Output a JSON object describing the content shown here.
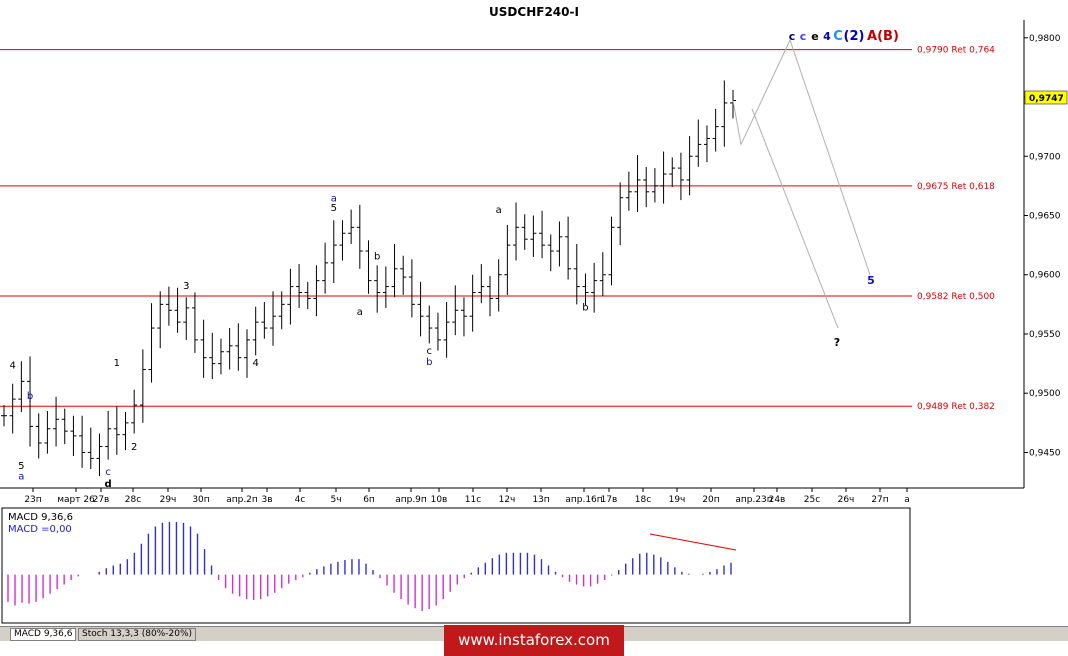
{
  "chart_data": {
    "type": "candlestick",
    "title": "USDCHF240-I",
    "ylim": [
      0.942,
      0.9815
    ],
    "y_ticks": [
      "0,9800",
      "0,9750",
      "0,9700",
      "0,9650",
      "0,9600",
      "0,9550",
      "0,9500",
      "0,9450"
    ],
    "current_price_label": "0,9747",
    "x_tick_labels": [
      "23п",
      "март 26",
      "27в",
      "28с",
      "29ч",
      "30п",
      "апр.2п",
      "3в",
      "4с",
      "5ч",
      "6п",
      "апр.9п",
      "10в",
      "11с",
      "12ч",
      "13п",
      "апр.16п",
      "17в",
      "18с",
      "19ч",
      "20п",
      "апр.23п",
      "24в",
      "25с",
      "26ч",
      "27п",
      "а"
    ],
    "retracement_levels": [
      {
        "price": 0.979,
        "label": "0,9790 Ret 0,764"
      },
      {
        "price": 0.9675,
        "label": "0,9675 Ret 0,618"
      },
      {
        "price": 0.9582,
        "label": "0,9582 Ret 0,500"
      },
      {
        "price": 0.9489,
        "label": "0,9489 Ret 0,382"
      }
    ],
    "close_path": [
      0.9481,
      0.9495,
      0.951,
      0.9472,
      0.9458,
      0.947,
      0.9478,
      0.9468,
      0.9464,
      0.945,
      0.9445,
      0.9455,
      0.947,
      0.9465,
      0.9475,
      0.949,
      0.952,
      0.9555,
      0.9575,
      0.957,
      0.956,
      0.9572,
      0.9545,
      0.953,
      0.9525,
      0.9535,
      0.954,
      0.953,
      0.9545,
      0.956,
      0.9555,
      0.9565,
      0.9575,
      0.959,
      0.9585,
      0.958,
      0.9595,
      0.961,
      0.9625,
      0.9635,
      0.964,
      0.962,
      0.9595,
      0.9585,
      0.959,
      0.9605,
      0.9598,
      0.9575,
      0.9565,
      0.9555,
      0.9545,
      0.956,
      0.957,
      0.9565,
      0.9585,
      0.959,
      0.958,
      0.96,
      0.9625,
      0.964,
      0.963,
      0.9635,
      0.9625,
      0.962,
      0.9632,
      0.9605,
      0.959,
      0.9585,
      0.9595,
      0.96,
      0.964,
      0.9665,
      0.967,
      0.968,
      0.967,
      0.9675,
      0.9685,
      0.969,
      0.968,
      0.97,
      0.971,
      0.9715,
      0.9725,
      0.9745,
      0.9747
    ],
    "wave_labels": [
      {
        "text": "4",
        "i": 1,
        "price": 0.9521,
        "color": "black"
      },
      {
        "text": "b",
        "i": 3,
        "price": 0.9495,
        "color": "blue"
      },
      {
        "text": "5",
        "i": 2,
        "price": 0.9436,
        "color": "black"
      },
      {
        "text": "a",
        "i": 2,
        "price": 0.9427,
        "color": "blue"
      },
      {
        "text": "1",
        "i": 13,
        "price": 0.9523,
        "color": "black"
      },
      {
        "text": "2",
        "i": 15,
        "price": 0.9452,
        "color": "black"
      },
      {
        "text": "c",
        "i": 12,
        "price": 0.9431,
        "color": "blue"
      },
      {
        "text": "d",
        "i": 12,
        "price": 0.9421,
        "color": "black"
      },
      {
        "text": "3",
        "i": 21,
        "price": 0.9588,
        "color": "black"
      },
      {
        "text": "4",
        "i": 29,
        "price": 0.9523,
        "color": "black"
      },
      {
        "text": "a",
        "i": 38,
        "price": 0.9662,
        "color": "blue"
      },
      {
        "text": "5",
        "i": 38,
        "price": 0.9654,
        "color": "black"
      },
      {
        "text": "b",
        "i": 43,
        "price": 0.9613,
        "color": "black"
      },
      {
        "text": "a",
        "i": 41,
        "price": 0.9566,
        "color": "black"
      },
      {
        "text": "c",
        "i": 49,
        "price": 0.9533,
        "color": "black"
      },
      {
        "text": "b",
        "i": 49,
        "price": 0.9524,
        "color": "blue"
      },
      {
        "text": "a",
        "i": 57,
        "price": 0.9652,
        "color": "black"
      },
      {
        "text": "b",
        "i": 67,
        "price": 0.957,
        "color": "black"
      }
    ],
    "projection_labels": [
      {
        "text": "5",
        "color": "#1010c0"
      },
      {
        "text": "?",
        "color": "#000000"
      }
    ],
    "top_degree_labels": [
      {
        "text": "c",
        "color": "#000080"
      },
      {
        "text": "c",
        "color": "#4040ff"
      },
      {
        "text": "e",
        "color": "#000000"
      },
      {
        "text": "4",
        "color": "#0000c0"
      },
      {
        "text": "C",
        "color": "#1e90ff"
      },
      {
        "text": "(2)",
        "color": "#0000c0"
      },
      {
        "text": "A",
        "color": "#c00000"
      },
      {
        "text": "(B)",
        "color": "#c00000"
      }
    ],
    "macd": {
      "label": "MACD 9,36,6",
      "value_label": "MACD =0,00",
      "ylim": [
        -0.005,
        0.007
      ],
      "histogram": [
        -0.003,
        -0.0034,
        -0.0031,
        -0.0032,
        -0.003,
        -0.0026,
        -0.0021,
        -0.0016,
        -0.0011,
        -0.0006,
        -0.0002,
        0.0,
        0.0,
        0.0003,
        0.0007,
        0.001,
        0.0012,
        0.0017,
        0.0024,
        0.0034,
        0.0045,
        0.0053,
        0.0057,
        0.0058,
        0.0058,
        0.0057,
        0.0053,
        0.0045,
        0.0028,
        0.001,
        -0.0006,
        -0.0015,
        -0.0021,
        -0.0024,
        -0.0027,
        -0.0028,
        -0.0027,
        -0.0024,
        -0.002,
        -0.0015,
        -0.001,
        -0.0006,
        -0.0003,
        0.0002,
        0.0006,
        0.0009,
        0.0012,
        0.0014,
        0.0016,
        0.0017,
        0.0017,
        0.0012,
        0.0005,
        -0.0004,
        -0.0012,
        -0.002,
        -0.0027,
        -0.0033,
        -0.0037,
        -0.004,
        -0.0038,
        -0.0034,
        -0.0027,
        -0.0019,
        -0.0011,
        -0.0004,
        0.0002,
        0.0008,
        0.0013,
        0.0018,
        0.0022,
        0.0024,
        0.0024,
        0.0024,
        0.0024,
        0.0022,
        0.0017,
        0.001,
        0.0003,
        -0.0003,
        -0.0008,
        -0.0011,
        -0.0013,
        -0.0013,
        -0.001,
        -0.0006,
        -0.0001,
        0.0005,
        0.0012,
        0.0018,
        0.0023,
        0.0024,
        0.0022,
        0.0019,
        0.0014,
        0.0008,
        0.0003,
        0.0001,
        0.0,
        0.0001,
        0.0003,
        0.0006,
        0.001,
        0.0013
      ],
      "divergence_line": true
    },
    "grid": false,
    "legend": "none"
  },
  "tabs": [
    {
      "label": "MACD 9,36,6"
    },
    {
      "label": "Stoch 13,3,3 (80%-20%)"
    }
  ],
  "watermark": "www.instaforex.com",
  "colors": {
    "retracement": "#e00000",
    "macd_positive": "#3030d0",
    "macd_negative": "#d030d0",
    "divergence": "#e00000",
    "projection": "#b0b0b0"
  }
}
